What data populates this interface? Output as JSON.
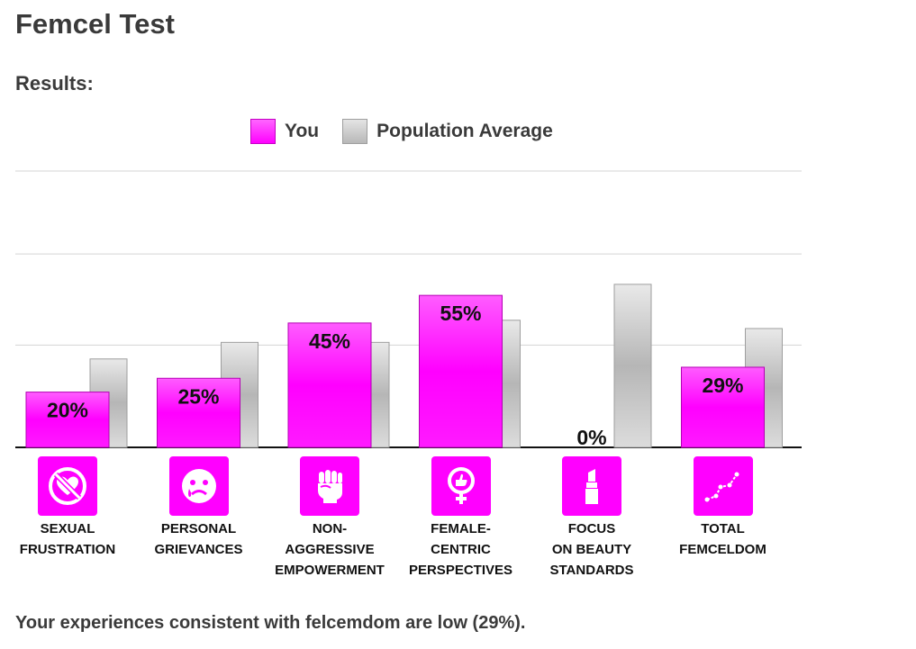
{
  "page": {
    "title": "Femcel Test",
    "results_label": "Results:",
    "summary": "Your experiences consistent with felcemdom are low (29%)."
  },
  "legend": {
    "you": "You",
    "average": "Population Average"
  },
  "colors": {
    "you": "#ff00ff",
    "average": "#bdbdbd",
    "text": "#3a3a3a"
  },
  "categories": [
    {
      "lines": [
        "SEXUAL",
        "FRUSTRATION"
      ],
      "icon": "no-heart-icon"
    },
    {
      "lines": [
        "PERSONAL",
        "GRIEVANCES"
      ],
      "icon": "crying-face-icon"
    },
    {
      "lines": [
        "NON-",
        "AGGRESSIVE",
        "EMPOWERMENT"
      ],
      "icon": "raised-fist-icon"
    },
    {
      "lines": [
        "FEMALE-",
        "CENTRIC",
        "PERSPECTIVES"
      ],
      "icon": "female-symbol-thumbs-up-icon"
    },
    {
      "lines": [
        "FOCUS",
        "ON BEAUTY",
        "STANDARDS"
      ],
      "icon": "lipstick-icon"
    },
    {
      "lines": [
        "TOTAL",
        "FEMCELDOM"
      ],
      "icon": "line-chart-icon"
    }
  ],
  "chart_data": {
    "type": "bar",
    "categories": [
      "SEXUAL FRUSTRATION",
      "PERSONAL GRIEVANCES",
      "NON-AGGRESSIVE EMPOWERMENT",
      "FEMALE-CENTRIC PERSPECTIVES",
      "FOCUS ON BEAUTY STANDARDS",
      "TOTAL FEMCELDOM"
    ],
    "series": [
      {
        "name": "You",
        "values": [
          20,
          25,
          45,
          55,
          0,
          29
        ],
        "labels": [
          "20%",
          "25%",
          "45%",
          "55%",
          "0%",
          "29%"
        ]
      },
      {
        "name": "Population Average",
        "values": [
          32,
          38,
          38,
          46,
          59,
          43
        ]
      }
    ],
    "ylim": [
      0,
      100
    ],
    "grid": true,
    "legend_position": "top"
  }
}
